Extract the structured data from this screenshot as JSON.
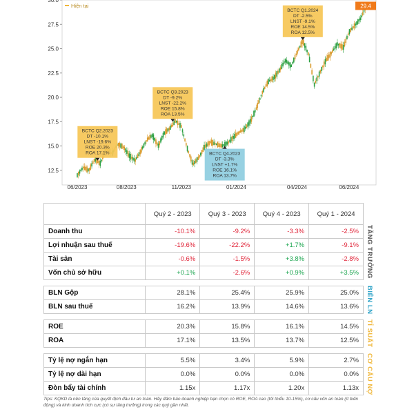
{
  "chart_data": {
    "type": "candlestick",
    "ylim": [
      11,
      30
    ],
    "y_ticks": [
      "30.0",
      "27.5",
      "25.0",
      "22.5",
      "20.0",
      "17.5",
      "15.0",
      "12.5"
    ],
    "x_ticks": [
      "06/2023",
      "08/2023",
      "11/2023",
      "01/2024",
      "04/2024",
      "06/2024"
    ],
    "legend_label": "Hiện tại",
    "current_price": "29.4",
    "series_path": [
      [
        0,
        12.0
      ],
      [
        2,
        12.8
      ],
      [
        4,
        12.5
      ],
      [
        6,
        13.6
      ],
      [
        8,
        13.2
      ],
      [
        10,
        14.8
      ],
      [
        12,
        14.2
      ],
      [
        14,
        15.2
      ],
      [
        16,
        14.9
      ],
      [
        18,
        14.0
      ],
      [
        20,
        13.5
      ],
      [
        22,
        14.5
      ],
      [
        24,
        15.6
      ],
      [
        26,
        16.1
      ],
      [
        28,
        15.0
      ],
      [
        30,
        16.3
      ],
      [
        32,
        16.8
      ],
      [
        34,
        17.6
      ],
      [
        36,
        17.0
      ],
      [
        38,
        14.8
      ],
      [
        40,
        13.1
      ],
      [
        42,
        13.8
      ],
      [
        44,
        14.9
      ],
      [
        46,
        15.4
      ],
      [
        48,
        15.2
      ],
      [
        50,
        15.0
      ],
      [
        52,
        15.3
      ],
      [
        54,
        15.9
      ],
      [
        56,
        16.4
      ],
      [
        58,
        16.8
      ],
      [
        60,
        17.6
      ],
      [
        62,
        18.9
      ],
      [
        64,
        20.5
      ],
      [
        66,
        21.6
      ],
      [
        68,
        22.0
      ],
      [
        70,
        22.8
      ],
      [
        72,
        23.8
      ],
      [
        74,
        23.2
      ],
      [
        76,
        24.6
      ],
      [
        78,
        25.8
      ],
      [
        80,
        24.4
      ],
      [
        82,
        21.3
      ],
      [
        84,
        22.6
      ],
      [
        86,
        23.8
      ],
      [
        88,
        24.6
      ],
      [
        90,
        25.5
      ],
      [
        92,
        25.1
      ],
      [
        94,
        26.7
      ],
      [
        96,
        27.4
      ],
      [
        98,
        28.1
      ],
      [
        100,
        29.4
      ]
    ],
    "annotations": [
      {
        "lines": [
          "BCTC Q2.2023",
          "DT -10.1%",
          "LNST -19.6%",
          "ROE 20.3%",
          "ROA 17.1%"
        ],
        "x": 7,
        "price": 13.5,
        "color": "#f6c555"
      },
      {
        "lines": [
          "BCTC Q3.2023",
          "DT -9.2%",
          "LNST -22.2%",
          "ROE 15.8%",
          "ROA 13.5%"
        ],
        "x": 33,
        "price": 17.5,
        "color": "#f6c555"
      },
      {
        "lines": [
          "BCTC Q4.2023",
          "DT -3.3%",
          "LNST +1.7%",
          "ROE 16.1%",
          "ROA 13.7%"
        ],
        "x": 51,
        "price": 15.0,
        "color": "#8ecde0"
      },
      {
        "lines": [
          "BCTC Q1.2024",
          "DT -2.5%",
          "LNST -9.1%",
          "ROE 14.5%",
          "ROA 12.5%"
        ],
        "x": 78,
        "price": 25.9,
        "color": "#f6c555"
      }
    ]
  },
  "table": {
    "headers": [
      "Quý 2 - 2023",
      "Quý 3 - 2023",
      "Quý 4 - 2023",
      "Quý 1 - 2024"
    ],
    "groups": [
      {
        "side_label": "TĂNG TRƯỞNG",
        "side_color": "#555555",
        "rows": [
          {
            "label": "Doanh thu",
            "values": [
              "-10.1%",
              "-9.2%",
              "-3.3%",
              "-2.5%"
            ]
          },
          {
            "label": "Lợi nhuận sau thuế",
            "values": [
              "-19.6%",
              "-22.2%",
              "+1.7%",
              "-9.1%"
            ]
          },
          {
            "label": "Tài sản",
            "values": [
              "-0.6%",
              "-1.5%",
              "+3.8%",
              "-2.8%"
            ]
          },
          {
            "label": "Vốn chủ sở hữu",
            "values": [
              "+0.1%",
              "-2.6%",
              "+0.9%",
              "+3.5%"
            ]
          }
        ]
      },
      {
        "side_label": "BIÊN LN",
        "side_color": "#35a6c9",
        "rows": [
          {
            "label": "BLN Gộp",
            "values": [
              "28.1%",
              "25.4%",
              "25.9%",
              "25.0%"
            ]
          },
          {
            "label": "BLN sau thuế",
            "values": [
              "16.2%",
              "13.9%",
              "14.6%",
              "13.6%"
            ]
          }
        ]
      },
      {
        "side_label": "TỈ SUẤT",
        "side_color": "#f0b73a",
        "rows": [
          {
            "label": "ROE",
            "values": [
              "20.3%",
              "15.8%",
              "16.1%",
              "14.5%"
            ]
          },
          {
            "label": "ROA",
            "values": [
              "17.1%",
              "13.5%",
              "13.7%",
              "12.5%"
            ]
          }
        ]
      },
      {
        "side_label": "CƠ CẤU NỢ",
        "side_color": "#f0b73a",
        "rows": [
          {
            "label": "Tỷ lệ nợ ngắn hạn",
            "values": [
              "5.5%",
              "3.4%",
              "5.9%",
              "2.7%"
            ]
          },
          {
            "label": "Tỷ lệ nợ dài hạn",
            "values": [
              "0.0%",
              "0.0%",
              "0.0%",
              "0.0%"
            ]
          },
          {
            "label": "Đòn bẩy tài chính",
            "values": [
              "1.15x",
              "1.17x",
              "1.20x",
              "1.13x"
            ]
          }
        ]
      }
    ]
  },
  "footnote": "Tips: KQKD là nền tảng của quyết định đầu tư an toàn. Hãy đảm bảo doanh nghiệp bạn chọn có ROE, ROA cao (tối thiểu 10-15%), cơ cấu vốn an toàn (ít biến động) và kinh doanh tích cực (có sự tăng trưởng) trong các quý gần nhất."
}
